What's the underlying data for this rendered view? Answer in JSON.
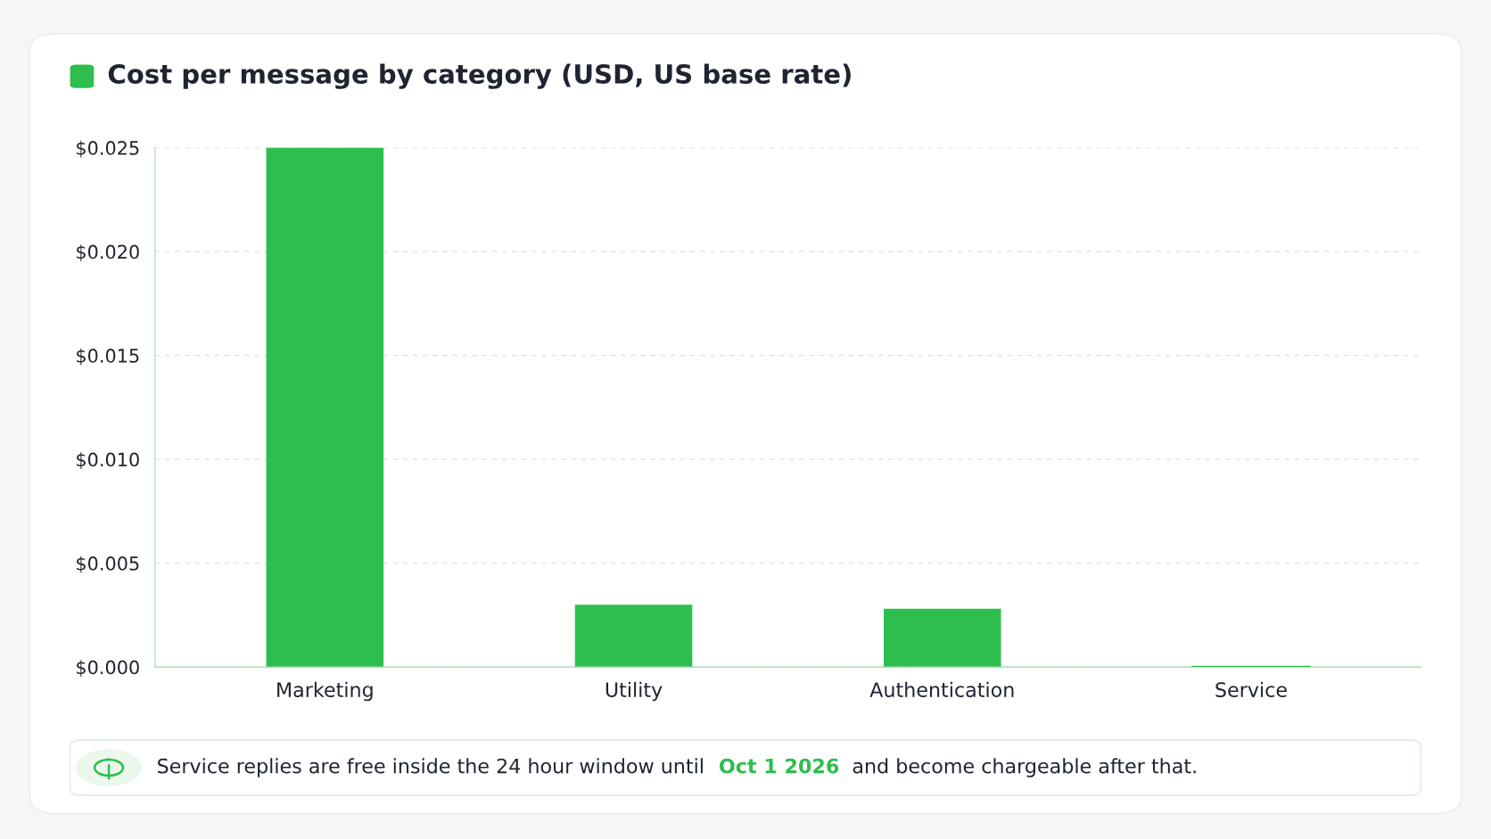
{
  "chart_data": {
    "type": "bar",
    "title": "Cost per message by category (USD, US base rate)",
    "categories": [
      "Marketing",
      "Utility",
      "Authentication",
      "Service"
    ],
    "values": [
      0.025,
      0.003,
      0.0028,
      0
    ],
    "color": "#2dbe4e",
    "ylim": [
      0,
      0.025
    ],
    "yticks": [
      {
        "value": 0,
        "label": "$0.000"
      },
      {
        "value": 0.005,
        "label": "$0.005"
      },
      {
        "value": 0.01,
        "label": "$0.010"
      },
      {
        "value": 0.015,
        "label": "$0.015"
      },
      {
        "value": 0.02,
        "label": "$0.020"
      },
      {
        "value": 0.025,
        "label": "$0.025"
      }
    ],
    "grid": "y",
    "annotations": [
      "Service replies are free inside the 24 hour window until ",
      "Oct 1 2026",
      " and become chargeable after that."
    ]
  }
}
